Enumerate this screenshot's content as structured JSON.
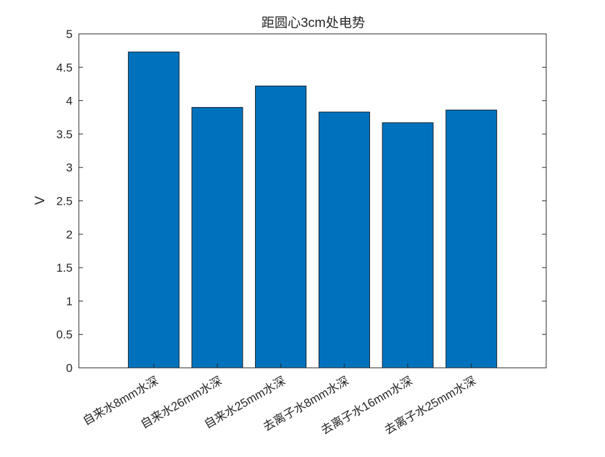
{
  "chart_data": {
    "type": "bar",
    "title": "距圆心3cm处电势",
    "xlabel": "",
    "ylabel": "V",
    "categories": [
      "自来水8mm水深",
      "自来水26mm水深",
      "自来水25mm水深",
      "去离子水8mm水深",
      "去离子水16mm水深",
      "去离子水25mm水深"
    ],
    "values": [
      4.73,
      3.9,
      4.22,
      3.83,
      3.67,
      3.86
    ],
    "ylim": [
      0,
      5
    ],
    "yticks": [
      "0",
      "0.5",
      "1",
      "1.5",
      "2",
      "2.5",
      "3",
      "3.5",
      "4",
      "4.5",
      "5"
    ],
    "grid": false,
    "legend": "none",
    "bar_color": "#0072BD",
    "bar_edge_color": "#000000",
    "axis_color": "#262626"
  }
}
